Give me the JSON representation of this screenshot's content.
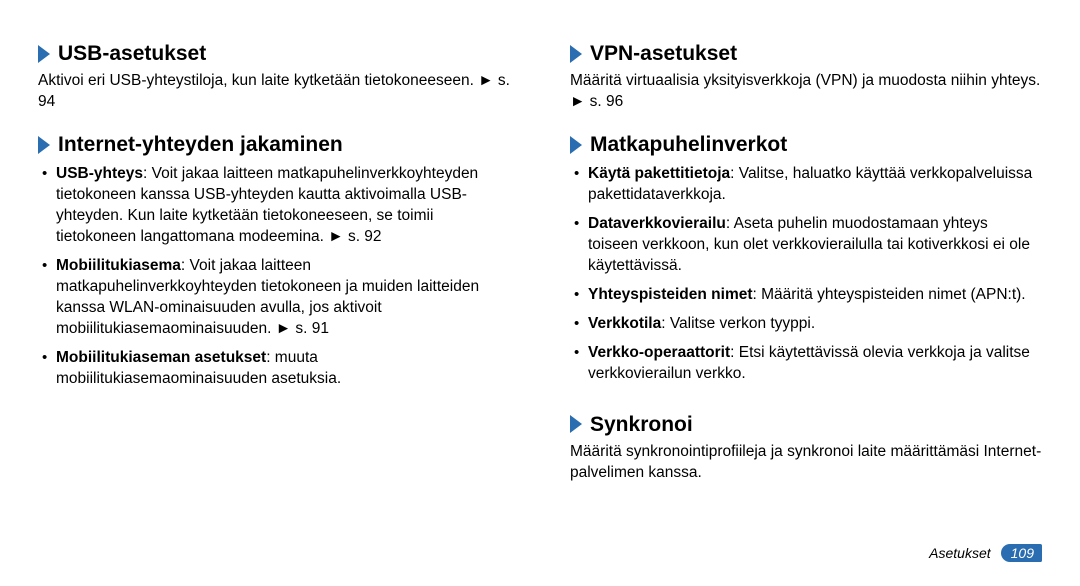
{
  "colors": {
    "accent": "#2a6db0",
    "text": "#000000",
    "background": "#ffffff"
  },
  "typography": {
    "heading_fontsize_pt": 16,
    "body_fontsize_pt": 11.5,
    "footer_fontsize_pt": 10
  },
  "left_column": {
    "usb": {
      "heading": "USB-asetukset",
      "intro_html": "Aktivoi eri USB-yhteystiloja, kun laite kytketään tietokoneeseen. ► s. 94"
    },
    "internet_share": {
      "heading": "Internet-yhteyden jakaminen",
      "items": [
        {
          "bold": "USB-yhteys",
          "rest": ": Voit jakaa laitteen matkapuhelinverkkoyhteyden tietokoneen kanssa USB-yhteyden kautta aktivoimalla USB-yhteyden. Kun laite kytketään tietokoneeseen, se toimii tietokoneen langattomana modeemina. ► s. 92"
        },
        {
          "bold": "Mobiilitukiasema",
          "rest": ": Voit jakaa laitteen matkapuhelinverkkoyhteyden tietokoneen ja muiden laitteiden kanssa WLAN-ominaisuuden avulla, jos aktivoit mobiilitukiasemaominaisuuden. ► s. 91"
        },
        {
          "bold": "Mobiilitukiaseman asetukset",
          "rest": ": muuta mobiilitukiasemaominaisuuden asetuksia."
        }
      ]
    }
  },
  "right_column": {
    "vpn": {
      "heading": "VPN-asetukset",
      "intro_html": "Määritä virtuaalisia yksityisverkkoja (VPN) ja muodosta niihin yhteys. ► s. 96"
    },
    "mobile_networks": {
      "heading": "Matkapuhelinverkot",
      "items": [
        {
          "bold": "Käytä pakettitietoja",
          "rest": ": Valitse, haluatko käyttää verkkopalveluissa pakettidataverkkoja."
        },
        {
          "bold": "Dataverkkovierailu",
          "rest": ": Aseta puhelin muodostamaan yhteys toiseen verkkoon, kun olet verkkovierailulla tai kotiverkkosi ei ole käytettävissä."
        },
        {
          "bold": "Yhteyspisteiden nimet",
          "rest": ": Määritä yhteyspisteiden nimet (APN:t)."
        },
        {
          "bold": "Verkkotila",
          "rest": ": Valitse verkon tyyppi."
        },
        {
          "bold": "Verkko-operaattorit",
          "rest": ": Etsi käytettävissä olevia verkkoja ja valitse verkkovierailun verkko."
        }
      ]
    },
    "sync": {
      "heading": "Synkronoi",
      "intro_html": "Määritä synkronointiprofiileja ja synkronoi laite määrittämäsi Internet-palvelimen kanssa."
    }
  },
  "footer": {
    "section_label": "Asetukset",
    "page_number": "109"
  }
}
